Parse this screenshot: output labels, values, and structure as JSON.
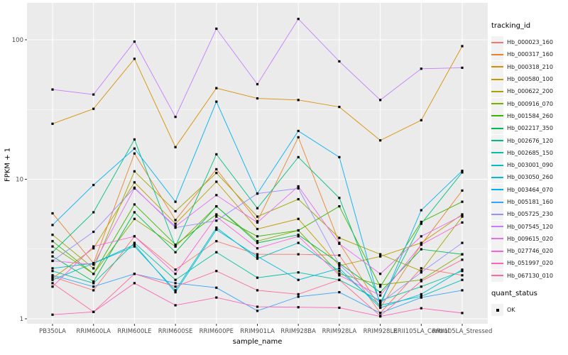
{
  "chart_data": {
    "type": "line",
    "title": "",
    "xlabel": "sample_name",
    "ylabel": "FPKM + 1",
    "y_scale": "log10",
    "ylim": [
      1,
      200
    ],
    "y_ticks": [
      "1",
      "10",
      "100"
    ],
    "y_tick_values": [
      1,
      10,
      100
    ],
    "y_minor_values": [
      3.1623,
      31.623
    ],
    "grid": "on",
    "panel_bg": "#EBEBEB",
    "grid_color": "#FFFFFF",
    "point_shape": "filled-square",
    "point_color": "#000000",
    "legend_position": "right",
    "categories": [
      "PB350LA",
      "RRIM600LA",
      "RRIM600LE",
      "RRIM600SE",
      "RRIM600PE",
      "RRIM901LA",
      "RRIM928BA",
      "RRIM928LA",
      "RRIM928LE",
      "RRII105LA_Control",
      "RRII105LA_Stressed"
    ],
    "series": [
      {
        "name": "Hb_000023_160",
        "color": "#F8766D",
        "values": [
          2.0,
          1.6,
          3.9,
          2.25,
          3.6,
          2.9,
          2.9,
          2.85,
          1.1,
          2.3,
          2.05
        ]
      },
      {
        "name": "Hb_000317_160",
        "color": "#EA8331",
        "values": [
          5.7,
          2.5,
          15.3,
          5.1,
          11.8,
          5.0,
          20.0,
          3.5,
          1.2,
          3.4,
          8.3
        ]
      },
      {
        "name": "Hb_000318_210",
        "color": "#D89000",
        "values": [
          25,
          32,
          73,
          17,
          45,
          38,
          37,
          33,
          19,
          26.5,
          90
        ]
      },
      {
        "name": "Hb_000580_100",
        "color": "#C09B00",
        "values": [
          1.95,
          3.2,
          9.5,
          4.8,
          9.6,
          4.4,
          5.2,
          2.4,
          2.8,
          3.5,
          5.6
        ]
      },
      {
        "name": "Hb_000622_200",
        "color": "#A3A500",
        "values": [
          4.0,
          2.3,
          11.4,
          5.9,
          11.1,
          5.4,
          7.2,
          3.8,
          2.9,
          2.2,
          5.4
        ]
      },
      {
        "name": "Hb_000916_070",
        "color": "#7CAE00",
        "values": [
          3.3,
          2.1,
          5.2,
          3.3,
          6.4,
          3.6,
          4.3,
          2.1,
          1.75,
          1.9,
          2.9
        ]
      },
      {
        "name": "Hb_001584_260",
        "color": "#39B600",
        "values": [
          3.6,
          2.1,
          6.6,
          3.4,
          5.6,
          3.9,
          4.3,
          6.4,
          1.7,
          4.95,
          6.9
        ]
      },
      {
        "name": "Hb_002217_350",
        "color": "#00BB4E",
        "values": [
          2.8,
          1.85,
          5.8,
          3.0,
          6.4,
          3.5,
          4.0,
          2.5,
          1.55,
          3.15,
          2.9
        ]
      },
      {
        "name": "Hb_002676_120",
        "color": "#00BF7D",
        "values": [
          3.0,
          5.8,
          19.3,
          3.3,
          15.1,
          6.2,
          14.4,
          7.35,
          1.3,
          4.8,
          11.2
        ]
      },
      {
        "name": "Hb_002685_150",
        "color": "#00C1A3",
        "values": [
          2.2,
          1.8,
          3.5,
          1.9,
          3.0,
          1.97,
          2.15,
          1.9,
          1.35,
          1.7,
          2.2
        ]
      },
      {
        "name": "Hb_003001_090",
        "color": "#00BFC4",
        "values": [
          1.9,
          2.5,
          3.3,
          1.6,
          4.5,
          2.7,
          3.5,
          2.2,
          1.25,
          1.45,
          1.9
        ]
      },
      {
        "name": "Hb_003050_260",
        "color": "#00BAE0",
        "values": [
          2.3,
          2.5,
          3.4,
          1.55,
          4.35,
          2.8,
          1.9,
          2.3,
          1.2,
          1.5,
          2.25
        ]
      },
      {
        "name": "Hb_003464_070",
        "color": "#00B0F6",
        "values": [
          4.7,
          9.1,
          16.6,
          6.9,
          36,
          7.9,
          22.2,
          14.4,
          1.25,
          6.0,
          11.5
        ]
      },
      {
        "name": "Hb_005181_160",
        "color": "#35A2FF",
        "values": [
          2.05,
          1.7,
          2.1,
          1.8,
          1.67,
          1.14,
          1.44,
          1.55,
          1.1,
          1.42,
          1.6
        ]
      },
      {
        "name": "Hb_005725_230",
        "color": "#9590FF",
        "values": [
          2.6,
          4.2,
          8.7,
          4.5,
          5.05,
          7.9,
          8.6,
          2.45,
          1.3,
          2.15,
          3.5
        ]
      },
      {
        "name": "Hb_007545_120",
        "color": "#C77CFF",
        "values": [
          44,
          40.5,
          97,
          28,
          120,
          48,
          141,
          70,
          37,
          62,
          63
        ]
      },
      {
        "name": "Hb_009615_020",
        "color": "#E76BF3",
        "values": [
          2.6,
          2.45,
          8.6,
          4.6,
          7.7,
          4.9,
          8.9,
          3.45,
          2.1,
          3.9,
          5.5
        ]
      },
      {
        "name": "Hb_027746_020",
        "color": "#FA62DB",
        "values": [
          1.7,
          3.3,
          3.9,
          2.1,
          5.4,
          3.2,
          3.9,
          2.05,
          1.47,
          3.4,
          4.9
        ]
      },
      {
        "name": "Hb_051997_020",
        "color": "#FF62BC",
        "values": [
          1.07,
          1.12,
          1.8,
          1.25,
          1.42,
          1.22,
          1.21,
          1.2,
          1.04,
          1.19,
          1.1
        ]
      },
      {
        "name": "Hb_067130_010",
        "color": "#FF6A98",
        "values": [
          1.8,
          1.12,
          2.1,
          1.7,
          2.2,
          1.6,
          1.5,
          1.9,
          1.05,
          1.86,
          2.65
        ]
      }
    ],
    "legend": {
      "color_title": "tracking_id",
      "shape_title": "quant_status",
      "shape_items": [
        {
          "label": "OK"
        }
      ]
    }
  }
}
